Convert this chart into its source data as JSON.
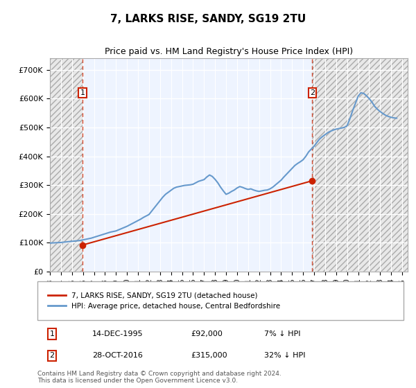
{
  "title": "7, LARKS RISE, SANDY, SG19 2TU",
  "subtitle": "Price paid vs. HM Land Registry's House Price Index (HPI)",
  "hpi_label": "HPI: Average price, detached house, Central Bedfordshire",
  "price_label": "7, LARKS RISE, SANDY, SG19 2TU (detached house)",
  "footnote": "Contains HM Land Registry data © Crown copyright and database right 2024.\nThis data is licensed under the Open Government Licence v3.0.",
  "sale1": {
    "date": "14-DEC-1995",
    "price": 92000,
    "label": "1",
    "hpi_diff": "7% ↓ HPI"
  },
  "sale2": {
    "date": "28-OCT-2016",
    "price": 315000,
    "label": "2",
    "hpi_diff": "32% ↓ HPI"
  },
  "sale1_x": 1995.95,
  "sale2_x": 2016.83,
  "ylim": [
    0,
    740000
  ],
  "xlim_left": 1993.0,
  "xlim_right": 2025.5,
  "yticks": [
    0,
    100000,
    200000,
    300000,
    400000,
    500000,
    600000,
    700000
  ],
  "ytick_labels": [
    "£0",
    "£100K",
    "£200K",
    "£300K",
    "£400K",
    "£500K",
    "£600K",
    "£700K"
  ],
  "xticks": [
    1993,
    1994,
    1995,
    1996,
    1997,
    1998,
    1999,
    2000,
    2001,
    2002,
    2003,
    2004,
    2005,
    2006,
    2007,
    2008,
    2009,
    2010,
    2011,
    2012,
    2013,
    2014,
    2015,
    2016,
    2017,
    2018,
    2019,
    2020,
    2021,
    2022,
    2023,
    2024,
    2025
  ],
  "hpi_color": "#6699cc",
  "price_color": "#cc2200",
  "hatch_color": "#bbbbbb",
  "background_color": "#ddeeff",
  "plot_bg": "#eef4ff",
  "grid_color": "#ffffff",
  "hpi_data_x": [
    1993.0,
    1993.25,
    1993.5,
    1993.75,
    1994.0,
    1994.25,
    1994.5,
    1994.75,
    1995.0,
    1995.25,
    1995.5,
    1995.75,
    1996.0,
    1996.25,
    1996.5,
    1996.75,
    1997.0,
    1997.25,
    1997.5,
    1997.75,
    1998.0,
    1998.25,
    1998.5,
    1998.75,
    1999.0,
    1999.25,
    1999.5,
    1999.75,
    2000.0,
    2000.25,
    2000.5,
    2000.75,
    2001.0,
    2001.25,
    2001.5,
    2001.75,
    2002.0,
    2002.25,
    2002.5,
    2002.75,
    2003.0,
    2003.25,
    2003.5,
    2003.75,
    2004.0,
    2004.25,
    2004.5,
    2004.75,
    2005.0,
    2005.25,
    2005.5,
    2005.75,
    2006.0,
    2006.25,
    2006.5,
    2006.75,
    2007.0,
    2007.25,
    2007.5,
    2007.75,
    2008.0,
    2008.25,
    2008.5,
    2008.75,
    2009.0,
    2009.25,
    2009.5,
    2009.75,
    2010.0,
    2010.25,
    2010.5,
    2010.75,
    2011.0,
    2011.25,
    2011.5,
    2011.75,
    2012.0,
    2012.25,
    2012.5,
    2012.75,
    2013.0,
    2013.25,
    2013.5,
    2013.75,
    2014.0,
    2014.25,
    2014.5,
    2014.75,
    2015.0,
    2015.25,
    2015.5,
    2015.75,
    2016.0,
    2016.25,
    2016.5,
    2016.75,
    2017.0,
    2017.25,
    2017.5,
    2017.75,
    2018.0,
    2018.25,
    2018.5,
    2018.75,
    2019.0,
    2019.25,
    2019.5,
    2019.75,
    2020.0,
    2020.25,
    2020.5,
    2020.75,
    2021.0,
    2021.25,
    2021.5,
    2021.75,
    2022.0,
    2022.25,
    2022.5,
    2022.75,
    2023.0,
    2023.25,
    2023.5,
    2023.75,
    2024.0,
    2024.25,
    2024.5
  ],
  "hpi_data_y": [
    99000,
    99500,
    100000,
    100500,
    101000,
    102000,
    103000,
    104000,
    105000,
    106000,
    107000,
    108000,
    110000,
    112000,
    114000,
    116000,
    119000,
    122000,
    125000,
    128000,
    131000,
    134000,
    137000,
    139000,
    141000,
    145000,
    149000,
    153000,
    157000,
    162000,
    167000,
    172000,
    177000,
    182000,
    188000,
    193000,
    198000,
    210000,
    222000,
    234000,
    246000,
    258000,
    268000,
    275000,
    282000,
    289000,
    293000,
    295000,
    297000,
    299000,
    300000,
    301000,
    303000,
    308000,
    313000,
    316000,
    319000,
    328000,
    335000,
    330000,
    320000,
    308000,
    293000,
    280000,
    268000,
    272000,
    278000,
    283000,
    290000,
    295000,
    292000,
    288000,
    285000,
    287000,
    283000,
    280000,
    278000,
    280000,
    282000,
    283000,
    287000,
    293000,
    301000,
    309000,
    317000,
    328000,
    338000,
    348000,
    358000,
    368000,
    375000,
    381000,
    388000,
    400000,
    415000,
    425000,
    435000,
    448000,
    460000,
    468000,
    475000,
    482000,
    487000,
    491000,
    494000,
    496000,
    498000,
    500000,
    506000,
    530000,
    558000,
    583000,
    608000,
    620000,
    618000,
    610000,
    600000,
    588000,
    573000,
    563000,
    555000,
    548000,
    542000,
    538000,
    535000,
    533000,
    532000
  ],
  "price_data_x": [
    1995.95,
    2016.83
  ],
  "price_data_y": [
    92000,
    315000
  ]
}
